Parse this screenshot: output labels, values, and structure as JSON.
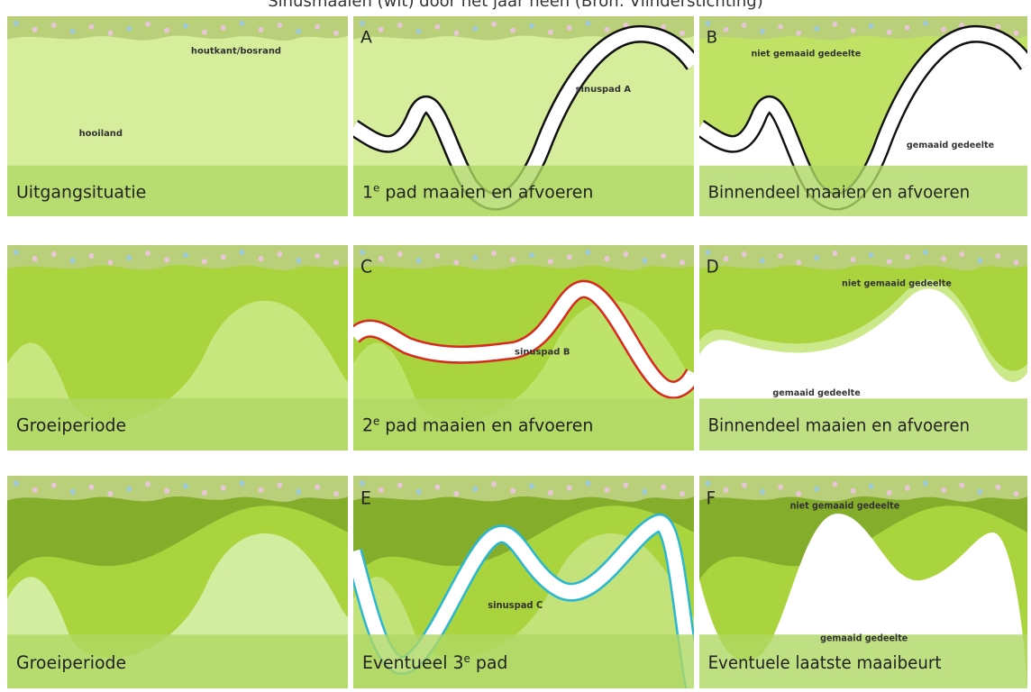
{
  "title": "Sinusmaaien (wit) door het jaar heen (Bron: Vlinderstichting)",
  "panels": [
    {
      "caption": "Uitgangsituatie",
      "labels": [
        "houtkant/bosrand",
        "hooiland"
      ]
    },
    {
      "letter": "A",
      "caption": [
        "1",
        "e",
        " pad maaien en afvoeren"
      ],
      "labels": [
        "sinuspad A"
      ]
    },
    {
      "letter": "B",
      "caption": "Binnendeel maaien en afvoeren",
      "labels": [
        "niet gemaaid gedeelte",
        "gemaaid gedeelte"
      ]
    },
    {
      "caption": "Groeiperiode"
    },
    {
      "letter": "C",
      "caption": [
        "2",
        "e",
        " pad maaien en afvoeren"
      ],
      "labels": [
        "sinuspad B"
      ]
    },
    {
      "letter": "D",
      "caption": "Binnendeel maaien en afvoeren",
      "labels": [
        "niet gemaaid gedeelte",
        "gemaaid gedeelte"
      ]
    },
    {
      "caption": "Groeiperiode"
    },
    {
      "letter": "E",
      "caption": [
        "Eventueel 3",
        "e",
        " pad"
      ],
      "labels": [
        "sinuspad C"
      ]
    },
    {
      "letter": "F",
      "caption": "Eventuele laatste maaibeurt",
      "labels": [
        "niet gemaaid gedeelte",
        "gemaaid gedeelte"
      ]
    }
  ]
}
